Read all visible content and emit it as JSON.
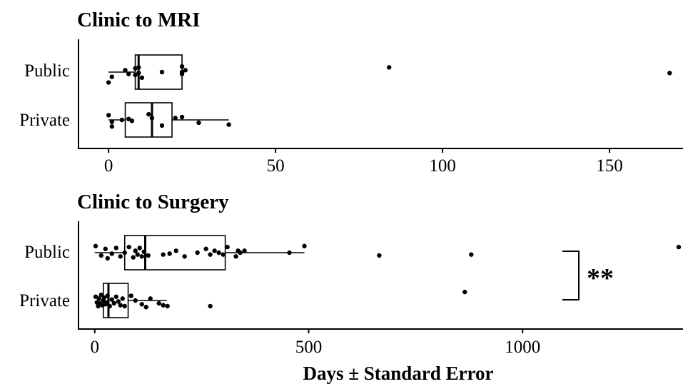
{
  "chart_data": [
    {
      "type": "boxplot",
      "title": "Clinic to MRI",
      "xlabel": "",
      "categories": [
        "Public",
        "Private"
      ],
      "xlim": [
        -9,
        172
      ],
      "xticks": [
        0,
        50,
        100,
        150
      ],
      "tick_labels": [
        "0",
        "50",
        "100",
        "150"
      ],
      "boxes": [
        {
          "name": "Public",
          "whisker_low": 0,
          "q1": 8,
          "median": 9,
          "q3": 22,
          "whisker_high": 22
        },
        {
          "name": "Private",
          "whisker_low": 0,
          "q1": 5,
          "median": 13,
          "q3": 19,
          "whisker_high": 36
        }
      ],
      "points": [
        {
          "category": "Public",
          "values": [
            0,
            1,
            5,
            6,
            8,
            8,
            9,
            9,
            10,
            16,
            22,
            22,
            22,
            23,
            84,
            168
          ],
          "jitter": [
            0.55,
            0.25,
            -0.1,
            0.1,
            -0.2,
            0.15,
            -0.25,
            0.05,
            0.3,
            0.0,
            -0.3,
            0.0,
            0.1,
            -0.1,
            -0.25,
            0.05
          ]
        },
        {
          "category": "Private",
          "values": [
            0,
            1,
            1,
            4,
            6,
            7,
            12,
            13,
            16,
            20,
            22,
            27,
            36
          ],
          "jitter": [
            -0.25,
            0.1,
            0.35,
            0.0,
            -0.05,
            0.05,
            -0.3,
            -0.1,
            0.3,
            -0.1,
            -0.15,
            0.15,
            0.25
          ]
        }
      ]
    },
    {
      "type": "boxplot",
      "title": "Clinic to Surgery",
      "xlabel": "Days ± Standard Error",
      "categories": [
        "Public",
        "Private"
      ],
      "xlim": [
        -38,
        1375
      ],
      "xticks": [
        0,
        500,
        1000
      ],
      "tick_labels": [
        "0",
        "500",
        "1000"
      ],
      "boxes": [
        {
          "name": "Public",
          "whisker_low": 0,
          "q1": 70,
          "median": 118,
          "q3": 305,
          "whisker_high": 490
        },
        {
          "name": "Private",
          "whisker_low": 15,
          "q1": 20,
          "median": 32,
          "q3": 78,
          "whisker_high": 168
        }
      ],
      "points": [
        {
          "category": "Public",
          "values": [
            2,
            15,
            25,
            30,
            40,
            50,
            60,
            70,
            80,
            90,
            95,
            100,
            105,
            110,
            115,
            125,
            160,
            175,
            190,
            210,
            240,
            260,
            270,
            280,
            290,
            300,
            310,
            330,
            335,
            340,
            350,
            455,
            490,
            665,
            880,
            1365
          ],
          "jitter": [
            -0.35,
            0.15,
            -0.2,
            0.3,
            0.05,
            -0.25,
            0.2,
            0.0,
            -0.3,
            0.25,
            -0.1,
            0.1,
            -0.25,
            0.2,
            -0.05,
            0.15,
            0.1,
            0.05,
            -0.1,
            0.2,
            0.0,
            -0.2,
            0.1,
            -0.1,
            0.0,
            0.1,
            -0.3,
            0.2,
            -0.1,
            0.0,
            -0.1,
            0.0,
            -0.35,
            0.15,
            0.1,
            -0.3
          ]
        },
        {
          "category": "Private",
          "values": [
            2,
            5,
            8,
            10,
            12,
            15,
            18,
            20,
            22,
            25,
            28,
            30,
            35,
            40,
            45,
            50,
            55,
            60,
            65,
            70,
            85,
            95,
            110,
            120,
            130,
            150,
            160,
            170,
            270,
            865
          ],
          "jitter": [
            -0.2,
            0.1,
            0.3,
            -0.1,
            0.15,
            -0.3,
            0.25,
            0.0,
            -0.15,
            0.2,
            0.1,
            -0.25,
            0.3,
            -0.05,
            0.15,
            -0.2,
            0.05,
            0.25,
            -0.1,
            0.3,
            -0.25,
            0.0,
            0.2,
            0.35,
            -0.1,
            0.15,
            0.25,
            0.3,
            0.3,
            -0.45
          ]
        }
      ],
      "annotation": {
        "text": "**",
        "between": [
          "Public",
          "Private"
        ]
      }
    }
  ]
}
